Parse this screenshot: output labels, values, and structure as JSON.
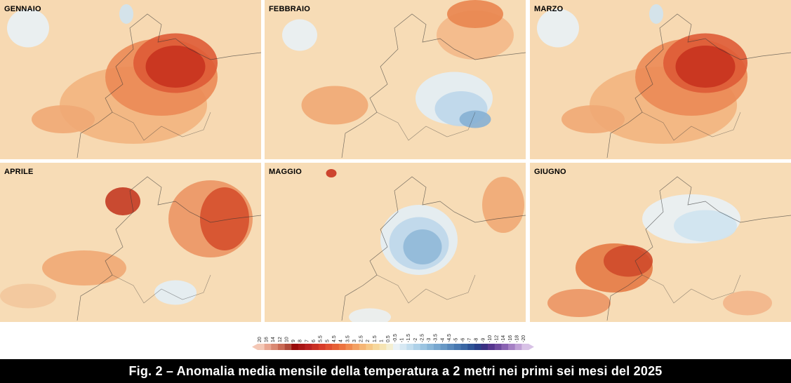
{
  "panels": [
    {
      "label": "GENNAIO",
      "theme": "warm_east"
    },
    {
      "label": "FEBBRAIO",
      "theme": "cold_balkans"
    },
    {
      "label": "MARZO",
      "theme": "warm_east"
    },
    {
      "label": "APRILE",
      "theme": "warm_ne"
    },
    {
      "label": "MAGGIO",
      "theme": "cold_central"
    },
    {
      "label": "GIUGNO",
      "theme": "warm_sw"
    }
  ],
  "legend": {
    "ticks": [
      "20",
      "16",
      "14",
      "12",
      "10",
      "9",
      "8",
      "7",
      "6",
      "5.5",
      "5",
      "4.5",
      "4",
      "3.5",
      "3",
      "2.5",
      "2",
      "1.5",
      "1",
      "0.5",
      "-0.5",
      "-1",
      "-1.5",
      "-2",
      "-2.5",
      "-3",
      "-3.5",
      "-4",
      "-4.5",
      "-5",
      "-6",
      "-7",
      "-8",
      "-9",
      "-10",
      "-12",
      "-14",
      "-16",
      "-18",
      "-20"
    ],
    "colors": [
      "#f4c8b6",
      "#e9a691",
      "#d98872",
      "#c96a55",
      "#b04a3a",
      "#980a0a",
      "#a81515",
      "#b82020",
      "#c82e22",
      "#d73b28",
      "#e04e30",
      "#e66036",
      "#ec733f",
      "#f08a50",
      "#f3a063",
      "#f5b574",
      "#f6c887",
      "#f6d79c",
      "#f5e4b3",
      "#f4efd2",
      "#eaf2f7",
      "#d6e8f3",
      "#c2ddee",
      "#aed1e8",
      "#9bc4e1",
      "#89b6d8",
      "#78a7cf",
      "#6898c5",
      "#5888bb",
      "#4878b0",
      "#3a66a3",
      "#2d5396",
      "#283f8a",
      "#3a2f82",
      "#55358e",
      "#6f4a9f",
      "#8a63b2",
      "#a580c4",
      "#c0a0d6",
      "#d8c2e6"
    ]
  },
  "caption": "Fig. 2 – Anomalia media mensile della temperatura a 2 metri nei primi sei mesi del 2025"
}
